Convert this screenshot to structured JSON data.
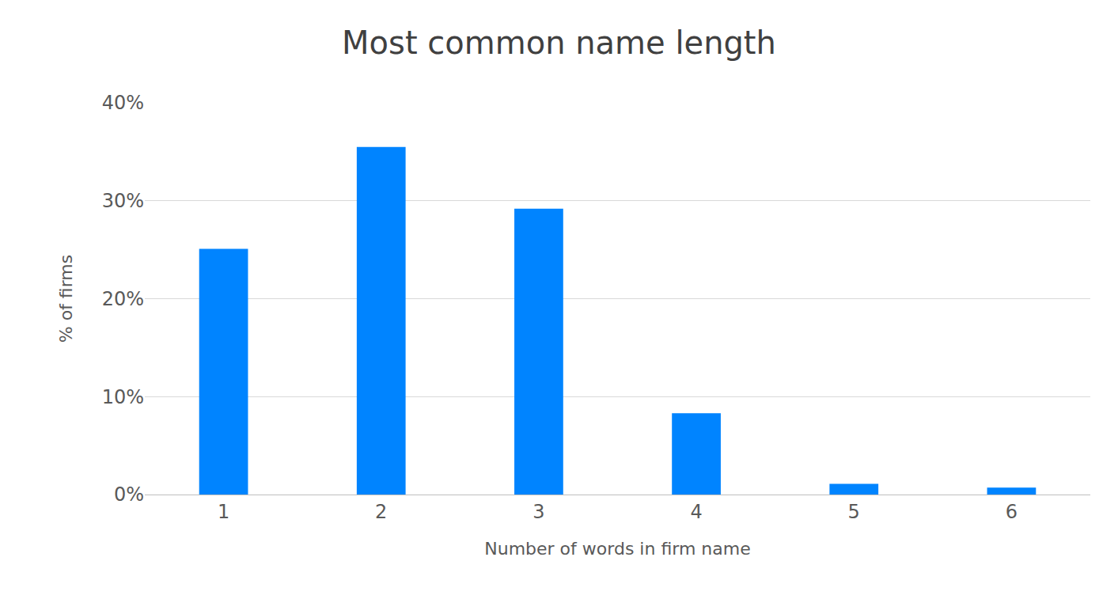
{
  "chart_data": {
    "type": "bar",
    "title": "Most common name length",
    "x_label": "Number of words in firm name",
    "y_label": "% of firms",
    "categories": [
      "1",
      "2",
      "3",
      "4",
      "5",
      "6"
    ],
    "values": [
      25.1,
      35.5,
      29.2,
      8.3,
      1.1,
      0.7
    ],
    "color": "#0084ff",
    "ylim": [
      0,
      40
    ],
    "yticks": [
      {
        "value": 0,
        "label": "0%"
      },
      {
        "value": 10,
        "label": "10%"
      },
      {
        "value": 20,
        "label": "20%"
      },
      {
        "value": 30,
        "label": "30%"
      },
      {
        "value": 40,
        "label": "40%"
      }
    ],
    "grid": true
  }
}
